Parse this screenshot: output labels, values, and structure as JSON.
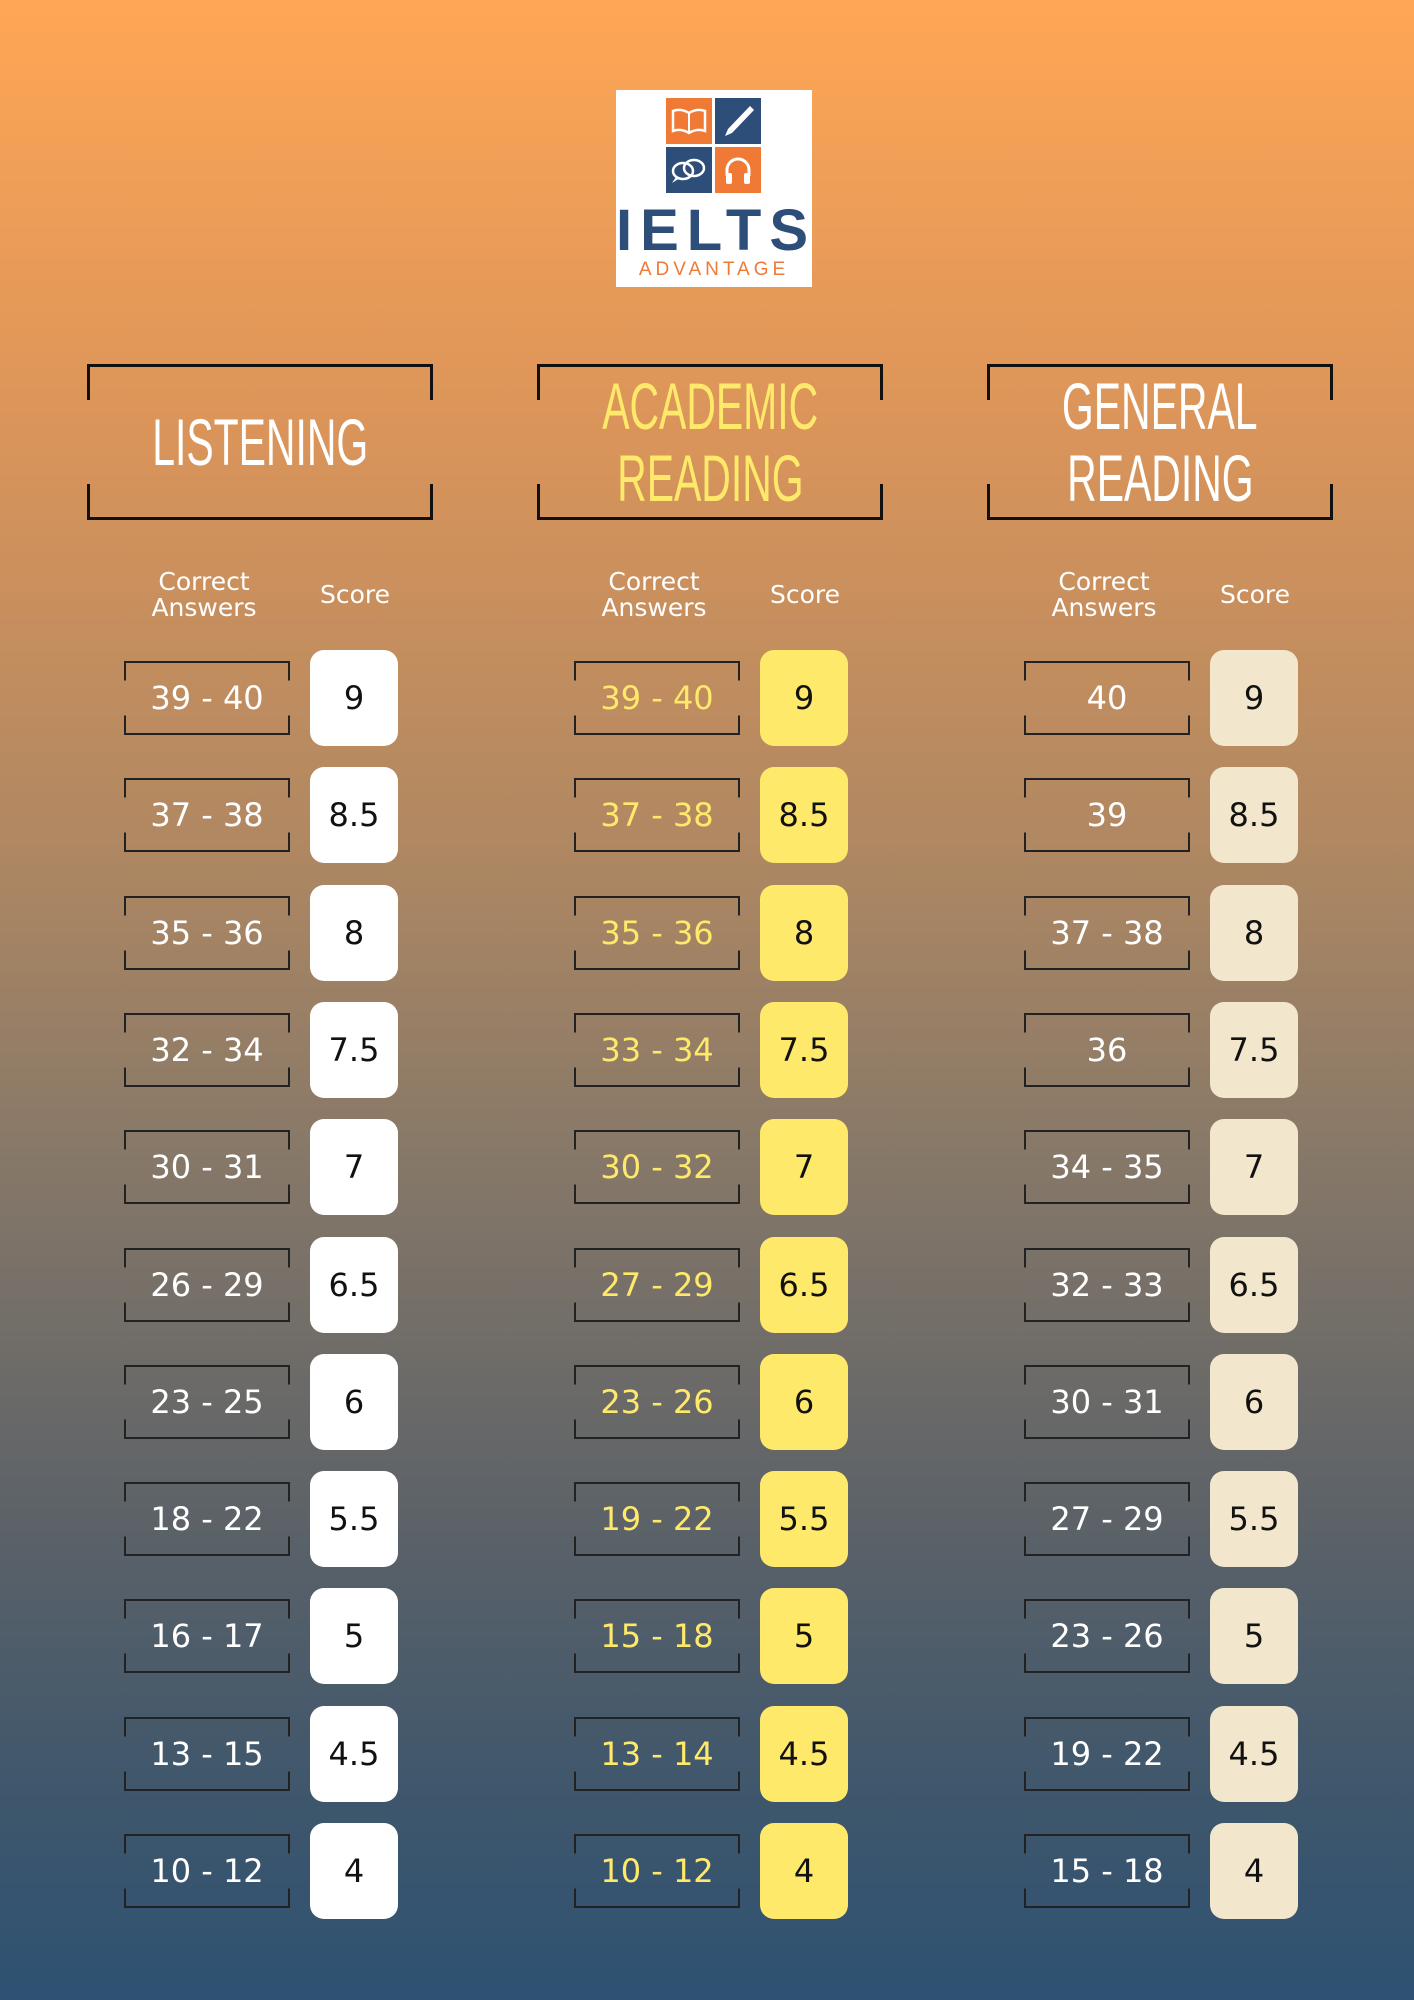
{
  "logo": {
    "main": "IELTS",
    "sub": "ADVANTAGE",
    "colors": {
      "orange": "#F07A35",
      "navy": "#2E4E7A"
    },
    "icons": [
      "book-icon",
      "pen-icon",
      "speech-bubbles-icon",
      "headphones-icon"
    ]
  },
  "column_labels": {
    "correct": "Correct Answers",
    "score": "Score"
  },
  "sections": [
    {
      "title": [
        "LISTENING"
      ],
      "title_color": "#FFFFFF",
      "range_color": "#FFFFFF",
      "score_bg": "#FFFFFF",
      "rows": [
        [
          "39 - 40",
          "9"
        ],
        [
          "37 - 38",
          "8.5"
        ],
        [
          "35 - 36",
          "8"
        ],
        [
          "32 - 34",
          "7.5"
        ],
        [
          "30 - 31",
          "7"
        ],
        [
          "26 - 29",
          "6.5"
        ],
        [
          "23 - 25",
          "6"
        ],
        [
          "18 - 22",
          "5.5"
        ],
        [
          "16 - 17",
          "5"
        ],
        [
          "13 - 15",
          "4.5"
        ],
        [
          "10 - 12",
          "4"
        ]
      ]
    },
    {
      "title": [
        "ACADEMIC",
        "READING"
      ],
      "title_color": "#FFE96B",
      "range_color": "#FFE96B",
      "score_bg": "#FFE96B",
      "rows": [
        [
          "39 - 40",
          "9"
        ],
        [
          "37 - 38",
          "8.5"
        ],
        [
          "35 - 36",
          "8"
        ],
        [
          "33 - 34",
          "7.5"
        ],
        [
          "30 - 32",
          "7"
        ],
        [
          "27 - 29",
          "6.5"
        ],
        [
          "23 - 26",
          "6"
        ],
        [
          "19 - 22",
          "5.5"
        ],
        [
          "15 - 18",
          "5"
        ],
        [
          "13 - 14",
          "4.5"
        ],
        [
          "10 - 12",
          "4"
        ]
      ]
    },
    {
      "title": [
        "GENERAL",
        "READING"
      ],
      "title_color": "#FFFFFF",
      "range_color": "#FFFFFF",
      "score_bg": "#F2E6CC",
      "rows": [
        [
          "40",
          "9"
        ],
        [
          "39",
          "8.5"
        ],
        [
          "37 - 38",
          "8"
        ],
        [
          "36",
          "7.5"
        ],
        [
          "34 - 35",
          "7"
        ],
        [
          "32 - 33",
          "6.5"
        ],
        [
          "30 - 31",
          "6"
        ],
        [
          "27 - 29",
          "5.5"
        ],
        [
          "23 - 26",
          "5"
        ],
        [
          "19 - 22",
          "4.5"
        ],
        [
          "15 - 18",
          "4"
        ]
      ]
    }
  ]
}
